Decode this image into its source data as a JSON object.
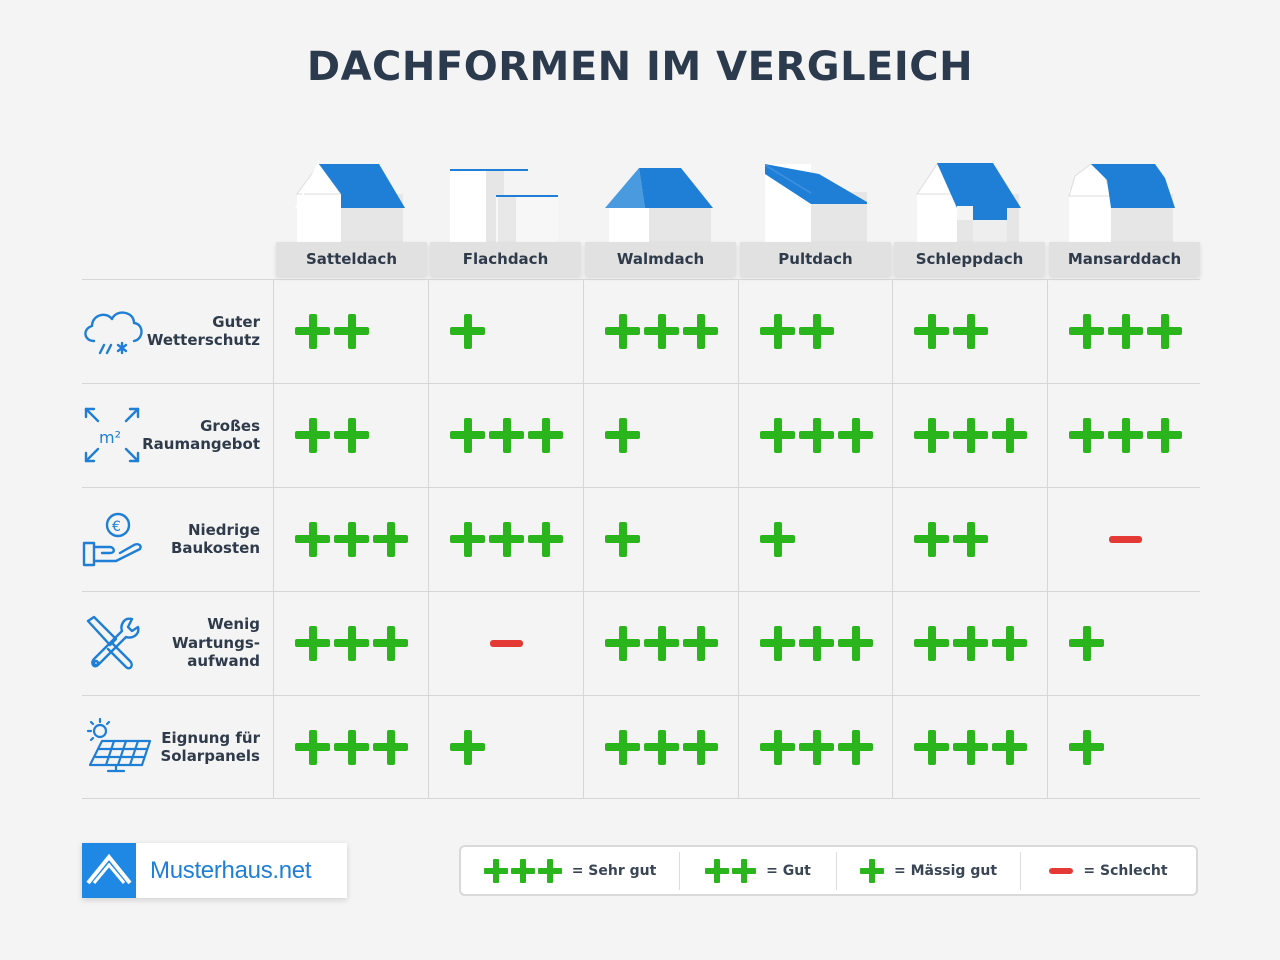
{
  "title": "DACHFORMEN IM VERGLEICH",
  "columns": [
    {
      "label": "Satteldach",
      "icon": "gable-roof-house-icon"
    },
    {
      "label": "Flachdach",
      "icon": "flat-roof-house-icon"
    },
    {
      "label": "Walmdach",
      "icon": "hip-roof-house-icon"
    },
    {
      "label": "Pultdach",
      "icon": "shed-roof-house-icon"
    },
    {
      "label": "Schleppdach",
      "icon": "dormer-roof-house-icon"
    },
    {
      "label": "Mansarddach",
      "icon": "mansard-roof-house-icon"
    }
  ],
  "rows": [
    {
      "label": "Guter\nWetterschutz",
      "icon": "weather-cloud-icon",
      "ratings": [
        2,
        1,
        3,
        2,
        2,
        3
      ]
    },
    {
      "label": "Großes\nRaumangebot",
      "icon": "square-meter-expand-icon",
      "ratings": [
        2,
        3,
        1,
        3,
        3,
        3
      ]
    },
    {
      "label": "Niedrige\nBaukosten",
      "icon": "euro-hand-icon",
      "ratings": [
        3,
        3,
        1,
        1,
        2,
        -1
      ]
    },
    {
      "label": "Wenig\nWartungs-\naufwand",
      "icon": "tools-icon",
      "ratings": [
        3,
        -1,
        3,
        3,
        3,
        1
      ]
    },
    {
      "label": "Eignung für\nSolarpanels",
      "icon": "solar-panel-icon",
      "ratings": [
        3,
        1,
        3,
        3,
        3,
        1
      ]
    }
  ],
  "logo": {
    "text": "Musterhaus.net",
    "icon": "house-roof-logo-icon"
  },
  "legend": [
    {
      "rating": 3,
      "label": "= Sehr gut"
    },
    {
      "rating": 2,
      "label": "= Gut"
    },
    {
      "rating": 1,
      "label": "= Mässig gut"
    },
    {
      "rating": -1,
      "label": "= Schlecht"
    }
  ],
  "colors": {
    "good": "#2bb51c",
    "bad": "#e53935",
    "roof_blue": "#1f7fd6",
    "title": "#2c3a4e",
    "brand_blue": "#1f88e5"
  }
}
